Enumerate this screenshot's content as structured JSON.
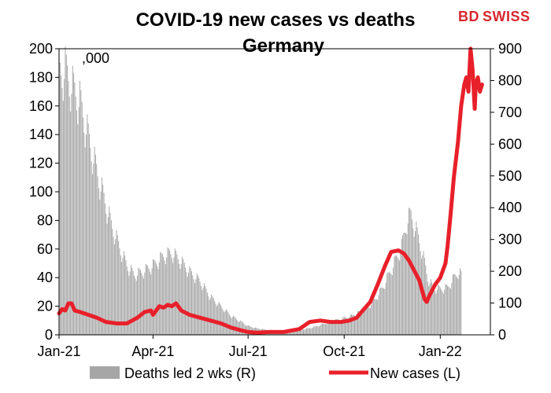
{
  "brand": {
    "logo_text_a": "BD",
    "logo_text_b": "SWISS",
    "color": "#d8262e"
  },
  "chart_data": {
    "type": "bar+line",
    "title_line1": "COVID-19 new cases vs deaths",
    "title_line2": "Germany",
    "left_axis": {
      "unit_label": ",000",
      "ylim": [
        0,
        200
      ],
      "ticks": [
        "0",
        "20",
        "40",
        "60",
        "80",
        "100",
        "120",
        "140",
        "160",
        "180",
        "200"
      ]
    },
    "right_axis": {
      "ylim": [
        0,
        900
      ],
      "ticks": [
        "0",
        "100",
        "200",
        "300",
        "400",
        "500",
        "600",
        "700",
        "800",
        "900"
      ]
    },
    "x_ticks": [
      "Jan-21",
      "Apr-21",
      "Jul-21",
      "Oct-21",
      "Jan-22"
    ],
    "x_range_days": [
      0,
      413
    ],
    "x_tick_days": [
      0,
      90,
      181,
      273,
      365
    ],
    "legend": {
      "bars_label": "Deaths led 2 wks (R)",
      "line_label": "New cases (L)",
      "bars_color": "#a6a6a6",
      "line_color": "#e8202a"
    },
    "deaths_series": {
      "name": "Deaths led 2 wks (R)",
      "color": "#a6a6a6",
      "anchors_day_value": [
        [
          0,
          830
        ],
        [
          6,
          840
        ],
        [
          12,
          790
        ],
        [
          20,
          740
        ],
        [
          30,
          600
        ],
        [
          40,
          470
        ],
        [
          50,
          350
        ],
        [
          60,
          260
        ],
        [
          65,
          220
        ],
        [
          72,
          190
        ],
        [
          80,
          200
        ],
        [
          90,
          220
        ],
        [
          100,
          250
        ],
        [
          108,
          260
        ],
        [
          115,
          240
        ],
        [
          125,
          200
        ],
        [
          135,
          170
        ],
        [
          145,
          120
        ],
        [
          155,
          90
        ],
        [
          165,
          60
        ],
        [
          175,
          40
        ],
        [
          181,
          28
        ],
        [
          190,
          20
        ],
        [
          200,
          15
        ],
        [
          215,
          14
        ],
        [
          230,
          15
        ],
        [
          245,
          25
        ],
        [
          258,
          40
        ],
        [
          270,
          50
        ],
        [
          280,
          60
        ],
        [
          290,
          75
        ],
        [
          300,
          100
        ],
        [
          310,
          150
        ],
        [
          320,
          220
        ],
        [
          328,
          280
        ],
        [
          333,
          360
        ],
        [
          337,
          380
        ],
        [
          342,
          330
        ],
        [
          348,
          260
        ],
        [
          353,
          180
        ],
        [
          358,
          150
        ],
        [
          365,
          145
        ],
        [
          372,
          150
        ],
        [
          378,
          180
        ],
        [
          382,
          200
        ],
        [
          385,
          190
        ]
      ]
    },
    "cases_series": {
      "name": "New cases (L)",
      "color": "#e8202a",
      "points_day_value": [
        [
          0,
          15
        ],
        [
          3,
          18
        ],
        [
          6,
          17
        ],
        [
          9,
          22
        ],
        [
          12,
          22
        ],
        [
          15,
          17
        ],
        [
          20,
          16
        ],
        [
          28,
          14
        ],
        [
          36,
          12
        ],
        [
          45,
          9
        ],
        [
          55,
          8
        ],
        [
          65,
          8
        ],
        [
          75,
          12
        ],
        [
          82,
          16
        ],
        [
          88,
          17
        ],
        [
          90,
          14
        ],
        [
          93,
          17
        ],
        [
          96,
          20
        ],
        [
          100,
          19
        ],
        [
          104,
          21
        ],
        [
          108,
          20
        ],
        [
          112,
          22
        ],
        [
          117,
          17
        ],
        [
          125,
          14
        ],
        [
          135,
          12
        ],
        [
          145,
          10
        ],
        [
          155,
          8
        ],
        [
          165,
          5
        ],
        [
          175,
          3
        ],
        [
          181,
          2
        ],
        [
          190,
          1.5
        ],
        [
          200,
          2
        ],
        [
          215,
          2
        ],
        [
          230,
          4
        ],
        [
          240,
          9
        ],
        [
          250,
          10
        ],
        [
          260,
          9
        ],
        [
          270,
          9
        ],
        [
          278,
          10
        ],
        [
          285,
          12
        ],
        [
          292,
          18
        ],
        [
          298,
          23
        ],
        [
          305,
          35
        ],
        [
          312,
          48
        ],
        [
          318,
          58
        ],
        [
          325,
          59
        ],
        [
          330,
          57
        ],
        [
          335,
          52
        ],
        [
          340,
          45
        ],
        [
          345,
          38
        ],
        [
          348,
          30
        ],
        [
          350,
          25
        ],
        [
          352,
          23
        ],
        [
          355,
          28
        ],
        [
          360,
          35
        ],
        [
          365,
          40
        ],
        [
          370,
          50
        ],
        [
          372,
          62
        ],
        [
          375,
          85
        ],
        [
          378,
          110
        ],
        [
          382,
          135
        ],
        [
          385,
          160
        ],
        [
          388,
          175
        ],
        [
          390,
          180
        ],
        [
          392,
          170
        ],
        [
          394,
          200
        ],
        [
          396,
          185
        ],
        [
          398,
          158
        ],
        [
          399,
          175
        ],
        [
          401,
          180
        ],
        [
          403,
          170
        ],
        [
          405,
          175
        ]
      ]
    }
  }
}
